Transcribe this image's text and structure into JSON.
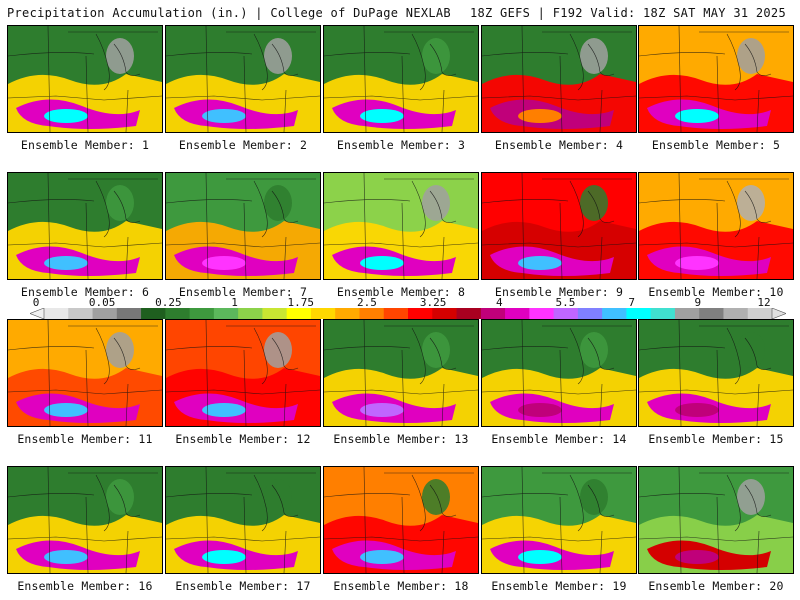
{
  "header": {
    "left": "Precipitation Accumulation (in.) | College of DuPage NEXLAB",
    "right": "18Z GEFS | F192 Valid: 18Z SAT MAY 31 2025"
  },
  "colorbar": {
    "labels": [
      "0",
      "0.05",
      "0.25",
      "1",
      "1.75",
      "2.5",
      "3.25",
      "4",
      "5.5",
      "7",
      "9",
      "12"
    ],
    "colors": [
      "#e8e8e8",
      "#c8c8c8",
      "#a0a0a0",
      "#787878",
      "#1f5f1f",
      "#2e7d2e",
      "#3e993e",
      "#5cb85c",
      "#8cd24a",
      "#c8e632",
      "#ffff00",
      "#ffd700",
      "#ffaa00",
      "#ff7f00",
      "#ff4500",
      "#ff0000",
      "#d40000",
      "#a80020",
      "#c0007a",
      "#e000c0",
      "#ff33ff",
      "#c066ff",
      "#8080ff",
      "#40c0ff",
      "#00ffff",
      "#40e0d0",
      "#a0a0a0",
      "#808080",
      "#b0b0b0",
      "#d0d0d0"
    ]
  },
  "panels": [
    {
      "label": "Ensemble Member: 1",
      "colors": [
        "#2e7d2e",
        "#ffd700",
        "#e000c0",
        "#00ffff",
        "#a0a0a0"
      ]
    },
    {
      "label": "Ensemble Member: 2",
      "colors": [
        "#2e7d2e",
        "#ffd700",
        "#e000c0",
        "#40c0ff",
        "#a0a0a0"
      ]
    },
    {
      "label": "Ensemble Member: 3",
      "colors": [
        "#2e7d2e",
        "#ffd700",
        "#e000c0",
        "#00ffff",
        "#3e993e"
      ]
    },
    {
      "label": "Ensemble Member: 4",
      "colors": [
        "#2e7d2e",
        "#ff0000",
        "#c0007a",
        "#ff7f00",
        "#a0a0a0"
      ]
    },
    {
      "label": "Ensemble Member: 5",
      "colors": [
        "#ffaa00",
        "#ff0000",
        "#e000c0",
        "#00ffff",
        "#a0a0a0"
      ]
    },
    {
      "label": "Ensemble Member: 6",
      "colors": [
        "#2e7d2e",
        "#ffd700",
        "#e000c0",
        "#40c0ff",
        "#3e993e"
      ]
    },
    {
      "label": "Ensemble Member: 7",
      "colors": [
        "#3e993e",
        "#ffaa00",
        "#e000c0",
        "#ff33ff",
        "#2e7d2e"
      ]
    },
    {
      "label": "Ensemble Member: 8",
      "colors": [
        "#8cd24a",
        "#ffd700",
        "#e000c0",
        "#00ffff",
        "#a0a0a0"
      ]
    },
    {
      "label": "Ensemble Member: 9",
      "colors": [
        "#ff0000",
        "#d40000",
        "#e000c0",
        "#40c0ff",
        "#2e7d2e"
      ]
    },
    {
      "label": "Ensemble Member: 10",
      "colors": [
        "#ffaa00",
        "#ff0000",
        "#e000c0",
        "#ff33ff",
        "#b0b0b0"
      ]
    },
    {
      "label": "Ensemble Member: 11",
      "colors": [
        "#ffaa00",
        "#ff4500",
        "#e000c0",
        "#40c0ff",
        "#a0a0a0"
      ]
    },
    {
      "label": "Ensemble Member: 12",
      "colors": [
        "#ff4500",
        "#ff0000",
        "#e000c0",
        "#40c0ff",
        "#a0a0a0"
      ]
    },
    {
      "label": "Ensemble Member: 13",
      "colors": [
        "#2e7d2e",
        "#ffd700",
        "#e000c0",
        "#c066ff",
        "#3e993e"
      ]
    },
    {
      "label": "Ensemble Member: 14",
      "colors": [
        "#2e7d2e",
        "#ffd700",
        "#e000c0",
        "#c0007a",
        "#3e993e"
      ]
    },
    {
      "label": "Ensemble Member: 15",
      "colors": [
        "#2e7d2e",
        "#ffd700",
        "#e000c0",
        "#c0007a",
        "#2e7d2e"
      ]
    },
    {
      "label": "Ensemble Member: 16",
      "colors": [
        "#2e7d2e",
        "#ffd700",
        "#e000c0",
        "#40c0ff",
        "#3e993e"
      ]
    },
    {
      "label": "Ensemble Member: 17",
      "colors": [
        "#2e7d2e",
        "#ffd700",
        "#e000c0",
        "#00ffff",
        "#2e7d2e"
      ]
    },
    {
      "label": "Ensemble Member: 18",
      "colors": [
        "#ff7f00",
        "#ff0000",
        "#e000c0",
        "#40c0ff",
        "#2e7d2e"
      ]
    },
    {
      "label": "Ensemble Member: 19",
      "colors": [
        "#3e993e",
        "#ffd700",
        "#e000c0",
        "#00ffff",
        "#2e7d2e"
      ]
    },
    {
      "label": "Ensemble Member: 20",
      "colors": [
        "#3e993e",
        "#8cd24a",
        "#d40000",
        "#c0007a",
        "#a0a0a0"
      ]
    }
  ]
}
